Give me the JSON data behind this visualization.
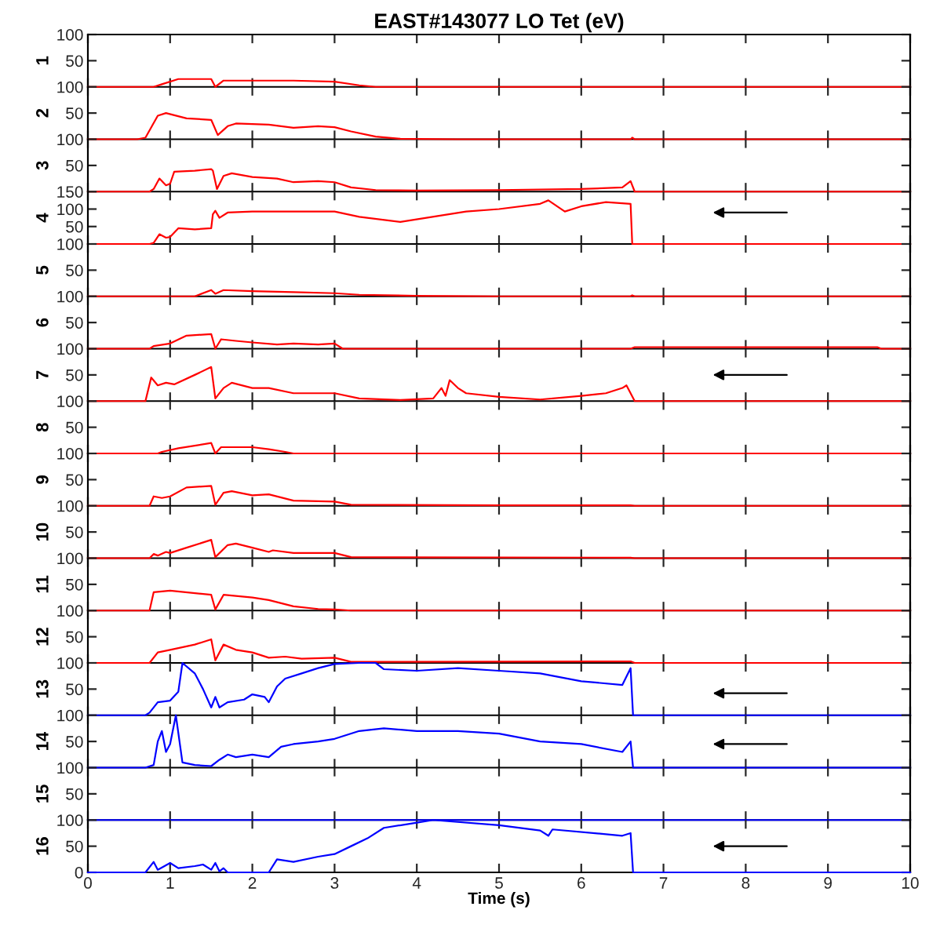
{
  "chart_data": [
    {
      "type": "line",
      "title": "EAST#143077 LO Tet (eV)",
      "ylabel": "1",
      "xlim": [
        0,
        10
      ],
      "xticks": [
        0,
        1,
        2,
        3,
        4,
        5,
        6,
        7,
        8,
        9,
        10
      ],
      "ylim": [
        0,
        100
      ],
      "yticks": [
        50,
        100
      ],
      "tick_labels": "y",
      "grid": false,
      "series": [
        {
          "color": "#ff0000",
          "x": [
            0,
            0.8,
            0.9,
            1.1,
            1.5,
            1.55,
            1.65,
            2.5,
            3.0,
            3.3,
            3.5,
            10
          ],
          "values": [
            0,
            0,
            5,
            15,
            15,
            0,
            12,
            12,
            10,
            3,
            0,
            0
          ]
        }
      ]
    },
    {
      "type": "line",
      "ylabel": "2",
      "xlim": [
        0,
        10
      ],
      "xticks": [
        0,
        1,
        2,
        3,
        4,
        5,
        6,
        7,
        8,
        9,
        10
      ],
      "ylim": [
        0,
        100
      ],
      "yticks": [
        50,
        100
      ],
      "tick_labels": "y",
      "grid": false,
      "series": [
        {
          "color": "#ff0000",
          "x": [
            0,
            0.6,
            0.7,
            0.85,
            0.95,
            1.2,
            1.5,
            1.52,
            1.58,
            1.7,
            1.8,
            2.2,
            2.5,
            2.8,
            3.0,
            3.2,
            3.5,
            3.8,
            4.5,
            6.6,
            6.62,
            6.65,
            10
          ],
          "values": [
            0,
            0,
            3,
            45,
            50,
            40,
            37,
            30,
            8,
            25,
            30,
            28,
            22,
            25,
            23,
            15,
            5,
            1,
            0,
            0,
            3,
            0,
            0
          ]
        }
      ]
    },
    {
      "type": "line",
      "ylabel": "3",
      "xlim": [
        0,
        10
      ],
      "xticks": [
        0,
        1,
        2,
        3,
        4,
        5,
        6,
        7,
        8,
        9,
        10
      ],
      "ylim": [
        0,
        100
      ],
      "yticks": [
        50,
        100
      ],
      "tick_labels": "y",
      "grid": false,
      "series": [
        {
          "color": "#ff0000",
          "x": [
            0,
            0.75,
            0.8,
            0.87,
            0.95,
            1.0,
            1.05,
            1.3,
            1.5,
            1.52,
            1.57,
            1.65,
            1.75,
            2.0,
            2.3,
            2.5,
            2.8,
            3.0,
            3.2,
            3.5,
            4,
            5,
            6,
            6.5,
            6.6,
            6.65,
            10
          ],
          "values": [
            0,
            0,
            5,
            25,
            12,
            15,
            38,
            40,
            43,
            40,
            5,
            30,
            35,
            28,
            25,
            18,
            20,
            18,
            8,
            3,
            2,
            3,
            5,
            8,
            20,
            0,
            0
          ]
        }
      ]
    },
    {
      "type": "line",
      "ylabel": "4",
      "xlim": [
        0,
        10
      ],
      "xticks": [
        0,
        1,
        2,
        3,
        4,
        5,
        6,
        7,
        8,
        9,
        10
      ],
      "ylim": [
        0,
        150
      ],
      "yticks": [
        50,
        100,
        150
      ],
      "tick_labels": "y",
      "grid": false,
      "series": [
        {
          "color": "#ff0000",
          "x": [
            0,
            0.75,
            0.8,
            0.87,
            0.95,
            1.0,
            1.1,
            1.3,
            1.5,
            1.52,
            1.55,
            1.6,
            1.7,
            2.0,
            3.0,
            3.3,
            3.8,
            4.6,
            5.0,
            5.5,
            5.6,
            5.8,
            6.0,
            6.3,
            6.6,
            6.62,
            10
          ],
          "values": [
            0,
            0,
            3,
            28,
            18,
            20,
            45,
            42,
            45,
            85,
            95,
            75,
            90,
            93,
            93,
            78,
            63,
            93,
            100,
            115,
            125,
            93,
            108,
            120,
            115,
            0,
            0
          ]
        }
      ]
    },
    {
      "type": "line",
      "ylabel": "5",
      "xlim": [
        0,
        10
      ],
      "xticks": [
        0,
        1,
        2,
        3,
        4,
        5,
        6,
        7,
        8,
        9,
        10
      ],
      "ylim": [
        0,
        100
      ],
      "yticks": [
        50,
        100
      ],
      "tick_labels": "y",
      "grid": false,
      "series": [
        {
          "color": "#ff0000",
          "x": [
            0,
            1.3,
            1.35,
            1.5,
            1.55,
            1.65,
            2.0,
            2.5,
            3.0,
            3.3,
            4,
            5,
            6.6,
            6.62,
            6.65,
            10
          ],
          "values": [
            0,
            0,
            3,
            12,
            5,
            12,
            10,
            8,
            6,
            3,
            1,
            0,
            0,
            2,
            0,
            0
          ]
        }
      ]
    },
    {
      "type": "line",
      "ylabel": "6",
      "xlim": [
        0,
        10
      ],
      "xticks": [
        0,
        1,
        2,
        3,
        4,
        5,
        6,
        7,
        8,
        9,
        10
      ],
      "ylim": [
        0,
        100
      ],
      "yticks": [
        50,
        100
      ],
      "tick_labels": "y",
      "grid": false,
      "series": [
        {
          "color": "#ff0000",
          "x": [
            0,
            0.75,
            0.8,
            1.0,
            1.2,
            1.5,
            1.55,
            1.62,
            1.8,
            2.0,
            2.3,
            2.5,
            2.8,
            3.0,
            3.1,
            6.6,
            6.65,
            9.6,
            9.65,
            10
          ],
          "values": [
            0,
            0,
            5,
            10,
            25,
            28,
            0,
            18,
            15,
            12,
            8,
            10,
            8,
            10,
            0,
            0,
            3,
            3,
            0,
            0
          ]
        }
      ]
    },
    {
      "type": "line",
      "ylabel": "7",
      "xlim": [
        0,
        10
      ],
      "xticks": [
        0,
        1,
        2,
        3,
        4,
        5,
        6,
        7,
        8,
        9,
        10
      ],
      "ylim": [
        0,
        100
      ],
      "yticks": [
        50,
        100
      ],
      "tick_labels": "y",
      "grid": false,
      "series": [
        {
          "color": "#ff0000",
          "x": [
            0,
            0.7,
            0.77,
            0.85,
            0.95,
            1.05,
            1.3,
            1.5,
            1.55,
            1.65,
            1.75,
            2.0,
            2.2,
            2.5,
            3.0,
            3.3,
            3.8,
            4.2,
            4.3,
            4.35,
            4.4,
            4.5,
            4.6,
            5.0,
            5.5,
            6.0,
            6.3,
            6.5,
            6.55,
            6.6,
            6.65,
            10
          ],
          "values": [
            0,
            0,
            45,
            30,
            35,
            32,
            50,
            65,
            5,
            25,
            35,
            25,
            25,
            15,
            15,
            5,
            2,
            5,
            25,
            10,
            40,
            25,
            15,
            8,
            3,
            10,
            15,
            25,
            30,
            15,
            0,
            0
          ]
        }
      ]
    },
    {
      "type": "line",
      "ylabel": "8",
      "xlim": [
        0,
        10
      ],
      "xticks": [
        0,
        1,
        2,
        3,
        4,
        5,
        6,
        7,
        8,
        9,
        10
      ],
      "ylim": [
        0,
        100
      ],
      "yticks": [
        50,
        100
      ],
      "tick_labels": "y",
      "grid": false,
      "series": [
        {
          "color": "#ff0000",
          "x": [
            0,
            0.85,
            0.9,
            1.1,
            1.5,
            1.55,
            1.62,
            2.0,
            2.2,
            2.4,
            2.5,
            10
          ],
          "values": [
            0,
            0,
            3,
            10,
            20,
            0,
            12,
            12,
            8,
            3,
            0,
            0
          ]
        }
      ]
    },
    {
      "type": "line",
      "ylabel": "9",
      "xlim": [
        0,
        10
      ],
      "xticks": [
        0,
        1,
        2,
        3,
        4,
        5,
        6,
        7,
        8,
        9,
        10
      ],
      "ylim": [
        0,
        100
      ],
      "yticks": [
        50,
        100
      ],
      "tick_labels": "y",
      "grid": false,
      "series": [
        {
          "color": "#ff0000",
          "x": [
            0,
            0.75,
            0.8,
            0.9,
            1.0,
            1.2,
            1.5,
            1.55,
            1.65,
            1.75,
            2.0,
            2.2,
            2.5,
            3.0,
            3.2,
            5,
            6.6,
            6.65,
            10
          ],
          "values": [
            0,
            0,
            18,
            15,
            18,
            35,
            38,
            2,
            25,
            28,
            20,
            22,
            10,
            8,
            2,
            1,
            1,
            0,
            0
          ]
        }
      ]
    },
    {
      "type": "line",
      "ylabel": "10",
      "xlim": [
        0,
        10
      ],
      "xticks": [
        0,
        1,
        2,
        3,
        4,
        5,
        6,
        7,
        8,
        9,
        10
      ],
      "ylim": [
        0,
        100
      ],
      "yticks": [
        50,
        100
      ],
      "tick_labels": "y",
      "grid": false,
      "series": [
        {
          "color": "#ff0000",
          "x": [
            0,
            0.75,
            0.8,
            0.85,
            0.95,
            1.0,
            1.2,
            1.5,
            1.55,
            1.7,
            1.8,
            2.0,
            2.2,
            2.25,
            2.5,
            3.0,
            3.2,
            6.6,
            6.65,
            10
          ],
          "values": [
            0,
            0,
            8,
            5,
            12,
            10,
            20,
            35,
            2,
            25,
            28,
            20,
            12,
            15,
            10,
            10,
            2,
            1,
            0,
            0
          ]
        }
      ]
    },
    {
      "type": "line",
      "ylabel": "11",
      "xlim": [
        0,
        10
      ],
      "xticks": [
        0,
        1,
        2,
        3,
        4,
        5,
        6,
        7,
        8,
        9,
        10
      ],
      "ylim": [
        0,
        100
      ],
      "yticks": [
        50,
        100
      ],
      "tick_labels": "y",
      "grid": false,
      "series": [
        {
          "color": "#ff0000",
          "x": [
            0,
            0.75,
            0.8,
            1.0,
            1.5,
            1.55,
            1.65,
            1.8,
            2.0,
            2.2,
            2.5,
            2.8,
            3.0,
            3.2,
            10
          ],
          "values": [
            0,
            0,
            35,
            38,
            30,
            2,
            30,
            28,
            25,
            20,
            8,
            3,
            2,
            0,
            0
          ]
        }
      ]
    },
    {
      "type": "line",
      "ylabel": "12",
      "xlim": [
        0,
        10
      ],
      "xticks": [
        0,
        1,
        2,
        3,
        4,
        5,
        6,
        7,
        8,
        9,
        10
      ],
      "ylim": [
        0,
        100
      ],
      "yticks": [
        50,
        100
      ],
      "tick_labels": "y",
      "grid": false,
      "series": [
        {
          "color": "#ff0000",
          "x": [
            0,
            0.75,
            0.85,
            1.0,
            1.3,
            1.5,
            1.55,
            1.65,
            1.8,
            2.0,
            2.2,
            2.4,
            2.6,
            3.0,
            3.2,
            6.6,
            6.65,
            10
          ],
          "values": [
            0,
            0,
            20,
            25,
            35,
            45,
            5,
            35,
            25,
            20,
            10,
            12,
            8,
            10,
            2,
            3,
            0,
            0
          ]
        }
      ]
    },
    {
      "type": "line",
      "ylabel": "13",
      "xlim": [
        0,
        10
      ],
      "xticks": [
        0,
        1,
        2,
        3,
        4,
        5,
        6,
        7,
        8,
        9,
        10
      ],
      "ylim": [
        0,
        100
      ],
      "yticks": [
        50,
        100
      ],
      "tick_labels": "y",
      "grid": false,
      "series": [
        {
          "color": "#0000ff",
          "x": [
            0,
            0.7,
            0.75,
            0.85,
            1.0,
            1.1,
            1.15,
            1.3,
            1.4,
            1.5,
            1.55,
            1.6,
            1.7,
            1.9,
            2.0,
            2.15,
            2.2,
            2.3,
            2.4,
            2.6,
            2.8,
            3.0,
            3.3,
            3.5,
            3.6,
            4.0,
            4.5,
            5.0,
            5.5,
            6.0,
            6.5,
            6.6,
            6.63,
            10
          ],
          "values": [
            0,
            0,
            5,
            25,
            28,
            45,
            100,
            80,
            50,
            15,
            35,
            15,
            25,
            30,
            40,
            35,
            25,
            55,
            70,
            80,
            90,
            98,
            100,
            100,
            88,
            85,
            90,
            85,
            80,
            65,
            58,
            90,
            0,
            0
          ]
        }
      ]
    },
    {
      "type": "line",
      "ylabel": "14",
      "xlim": [
        0,
        10
      ],
      "xticks": [
        0,
        1,
        2,
        3,
        4,
        5,
        6,
        7,
        8,
        9,
        10
      ],
      "ylim": [
        0,
        100
      ],
      "yticks": [
        50,
        100
      ],
      "tick_labels": "y",
      "grid": false,
      "series": [
        {
          "color": "#0000ff",
          "x": [
            0,
            0.7,
            0.8,
            0.85,
            0.9,
            0.95,
            1.0,
            1.07,
            1.15,
            1.3,
            1.5,
            1.6,
            1.7,
            1.8,
            2.0,
            2.2,
            2.35,
            2.5,
            2.8,
            3.0,
            3.3,
            3.6,
            4.0,
            4.5,
            5.0,
            5.5,
            6.0,
            6.5,
            6.6,
            6.63,
            10
          ],
          "values": [
            0,
            0,
            5,
            50,
            70,
            30,
            45,
            100,
            10,
            5,
            3,
            15,
            25,
            20,
            25,
            20,
            40,
            45,
            50,
            55,
            70,
            75,
            70,
            70,
            65,
            50,
            45,
            30,
            50,
            0,
            0
          ]
        }
      ]
    },
    {
      "type": "line",
      "ylabel": "15",
      "xlim": [
        0,
        10
      ],
      "xticks": [
        0,
        1,
        2,
        3,
        4,
        5,
        6,
        7,
        8,
        9,
        10
      ],
      "ylim": [
        0,
        100
      ],
      "yticks": [
        50,
        100
      ],
      "tick_labels": "y",
      "grid": false,
      "series": [
        {
          "color": "#0000ff",
          "x": [
            0,
            10
          ],
          "values": [
            0,
            0
          ]
        }
      ]
    },
    {
      "type": "line",
      "ylabel": "16",
      "xlabel": "Time (s)",
      "xlim": [
        0,
        10
      ],
      "xticks": [
        0,
        1,
        2,
        3,
        4,
        5,
        6,
        7,
        8,
        9,
        10
      ],
      "ylim": [
        0,
        100
      ],
      "yticks": [
        0,
        50,
        100
      ],
      "grid": false,
      "series": [
        {
          "color": "#0000ff",
          "x": [
            0,
            0.7,
            0.8,
            0.85,
            1.0,
            1.1,
            1.3,
            1.4,
            1.5,
            1.55,
            1.6,
            1.65,
            1.7,
            2.2,
            2.3,
            2.5,
            2.8,
            3.0,
            3.2,
            3.4,
            3.6,
            4.0,
            4.2,
            5.0,
            5.5,
            5.6,
            5.65,
            6.5,
            6.6,
            6.63,
            10
          ],
          "values": [
            0,
            0,
            20,
            5,
            18,
            8,
            12,
            15,
            5,
            18,
            2,
            8,
            0,
            0,
            25,
            20,
            30,
            35,
            50,
            65,
            85,
            95,
            100,
            90,
            80,
            70,
            82,
            70,
            75,
            0,
            0
          ]
        }
      ]
    }
  ]
}
